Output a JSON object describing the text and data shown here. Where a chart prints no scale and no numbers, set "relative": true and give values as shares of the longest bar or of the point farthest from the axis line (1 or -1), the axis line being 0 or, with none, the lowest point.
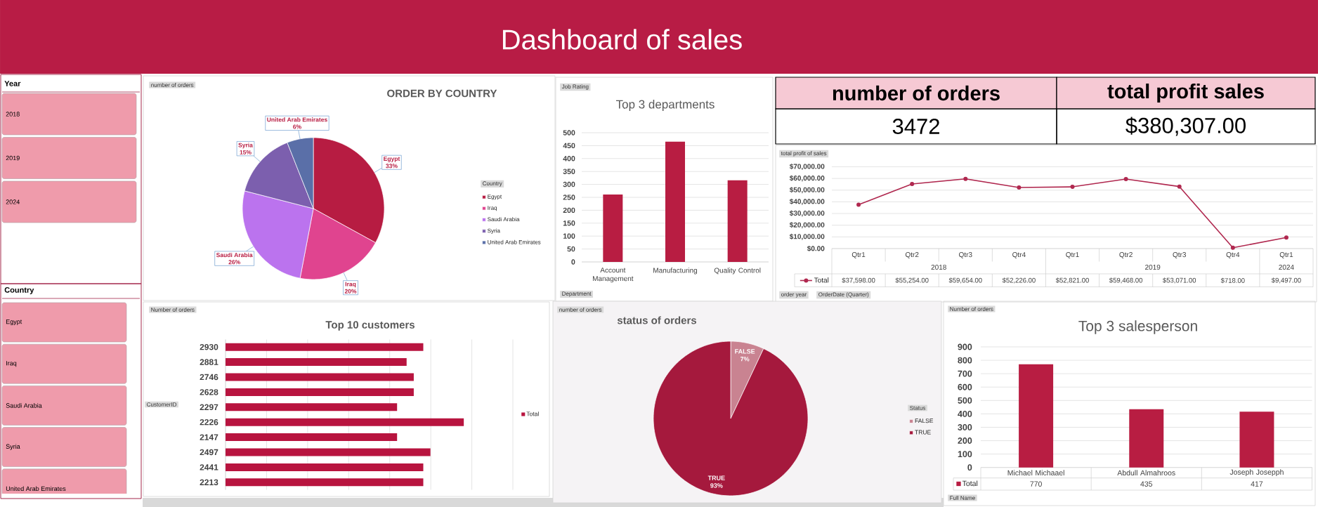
{
  "chart_data": [
    {
      "type": "other",
      "title": "Dashboard of sales"
    },
    {
      "type": "other",
      "title": "Year",
      "annotations": [
        "2018",
        "2019",
        "2024"
      ]
    },
    {
      "type": "pie",
      "title": "ORDER BY COUNTRY",
      "categories": [
        "Egypt",
        "Iraq",
        "Saudi Arabia",
        "Syria",
        "United Arab Emirates"
      ],
      "values": [
        33,
        20,
        26,
        15,
        6
      ],
      "colors": [
        "#b71c42",
        "#e0448f",
        "#bb73ee",
        "#7c5fae",
        "#5a6fa8"
      ],
      "value_labels": [
        "33%",
        "20%",
        "26%",
        "15%",
        "6%"
      ],
      "legend": "right",
      "legend_title": "Country",
      "annotations": [
        "number of orders"
      ]
    },
    {
      "type": "bar",
      "title": "Top 3 departments",
      "categories": [
        "Account Management",
        "Manufacturing",
        "Quality Control"
      ],
      "values": [
        261,
        465,
        316
      ],
      "color": "#b81d42",
      "ylim": [
        0,
        500
      ],
      "yticks": [
        0,
        50,
        100,
        150,
        200,
        250,
        300,
        350,
        400,
        450,
        500
      ],
      "grid": "y",
      "annotations": [
        "Job Rating",
        "Department"
      ]
    },
    {
      "type": "other",
      "annotations": [
        "number of orders",
        "3472",
        "total profit sales",
        "$380,307.00"
      ]
    },
    {
      "type": "line",
      "categories": [
        "Qtr1",
        "Qtr2",
        "Qtr3",
        "Qtr4",
        "Qtr1",
        "Qtr2",
        "Qtr3",
        "Qtr4",
        "Qtr1"
      ],
      "series": [
        {
          "name": "Total",
          "color": "#b0284f",
          "values": [
            37598,
            55254,
            59654,
            52226,
            52821,
            59468,
            53071,
            718,
            9497
          ],
          "value_labels": [
            "$37,598.00",
            "$55,254.00",
            "$59,654.00",
            "$52,226.00",
            "$52,821.00",
            "$59,468.00",
            "$53,071.00",
            "$718.00",
            "$9,497.00"
          ]
        }
      ],
      "ylim": [
        0,
        70000
      ],
      "yticks": [
        {
          "value": 0,
          "label": "$0.00"
        },
        {
          "value": 10000,
          "label": "$10,000.00"
        },
        {
          "value": 20000,
          "label": "$20,000.00"
        },
        {
          "value": 30000,
          "label": "$30,000.00"
        },
        {
          "value": 40000,
          "label": "$40,000.00"
        },
        {
          "value": 50000,
          "label": "$50,000.00"
        },
        {
          "value": 60000,
          "label": "$60,000.00"
        },
        {
          "value": 70000,
          "label": "$70,000.00"
        }
      ],
      "grid": "y",
      "marker": "circle",
      "legend": "bottom left",
      "annotations": [
        "total profit of sales",
        "order year",
        "OrderDate (Quarter)",
        "2018",
        "2019",
        "2024"
      ]
    },
    {
      "type": "other",
      "title": "Country",
      "annotations": [
        "Egypt",
        "Iraq",
        "Saudi Arabia",
        "Syria",
        "United Arab Emirates"
      ]
    },
    {
      "type": "bar",
      "orientation": "horizontal",
      "relative": true,
      "title": "Top 10 customers",
      "categories": [
        "2930",
        "2881",
        "2746",
        "2628",
        "2297",
        "2226",
        "2147",
        "2497",
        "2441",
        "2213"
      ],
      "series": [
        {
          "name": "Total",
          "color": "#b8143f",
          "values": [
            0.83,
            0.76,
            0.79,
            0.79,
            0.72,
            1,
            0.72,
            0.86,
            0.83,
            0.83
          ]
        }
      ],
      "grid": "x",
      "legend": "right",
      "annotations": [
        "Number of orders",
        "CustomerID"
      ]
    },
    {
      "type": "pie",
      "title": "status of orders",
      "categories": [
        "FALSE",
        "TRUE"
      ],
      "values": [
        7,
        93
      ],
      "colors": [
        "#c98391",
        "#a5193d"
      ],
      "value_labels": [
        "7%",
        "93%"
      ],
      "legend": "right",
      "legend_title": "Status",
      "annotations": [
        "number of orders"
      ]
    },
    {
      "type": "bar",
      "title": "Top 3 salesperson",
      "categories": [
        "Michael Michaael",
        "Abdull Almahroos",
        "Joseph Josepph"
      ],
      "series": [
        {
          "name": "Total",
          "color": "#b81d42",
          "values": [
            770,
            435,
            417
          ]
        }
      ],
      "data_labels": true,
      "ylim": [
        0,
        900
      ],
      "yticks": [
        0,
        100,
        200,
        300,
        400,
        500,
        600,
        700,
        800,
        900
      ],
      "grid": "y",
      "legend": "bottom left",
      "annotations": [
        "Number of orders",
        "Full Name"
      ]
    }
  ]
}
